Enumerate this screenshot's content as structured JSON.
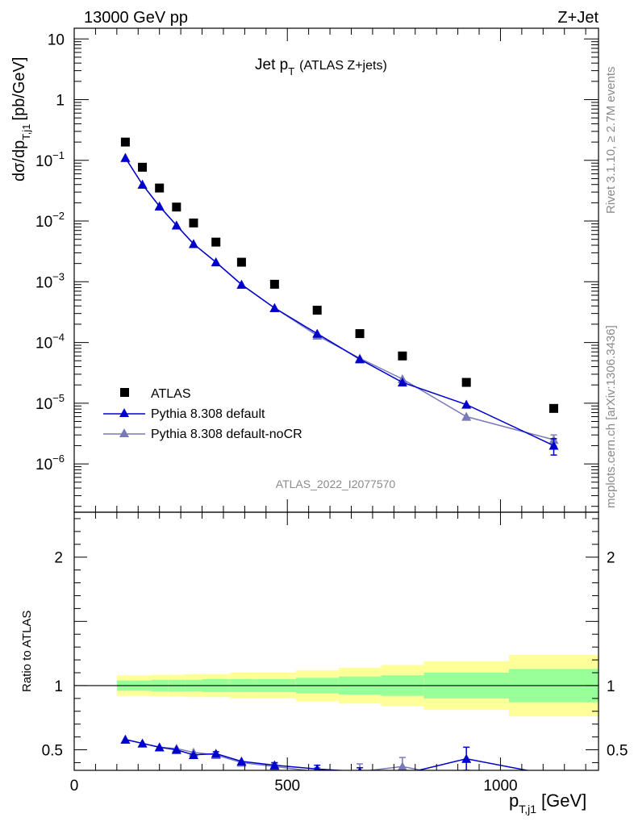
{
  "header": {
    "left": "13000 GeV pp",
    "right": "Z+Jet",
    "title_main": "Jet p",
    "title_sub": "T",
    "title_paren": "(ATLAS Z+jets)"
  },
  "side_labels": {
    "top": "Rivet 3.1.10, ≥ 2.7M events",
    "bottom": "mcplots.cern.ch [arXiv:1306.3436]"
  },
  "analysis_id": "ATLAS_2022_I2077570",
  "axes": {
    "y_main": "dσ/dp",
    "y_main_sub": "T,j1",
    "y_main_unit": "[pb/GeV]",
    "y_ratio": "Ratio to ATLAS",
    "x": "p",
    "x_sub": "T,j1",
    "x_unit": "[GeV]",
    "main_ticks": [
      {
        "label": "10",
        "exp": ""
      },
      {
        "label": "1",
        "exp": ""
      },
      {
        "label": "10",
        "exp": "−1"
      },
      {
        "label": "10",
        "exp": "−2"
      },
      {
        "label": "10",
        "exp": "−3"
      },
      {
        "label": "10",
        "exp": "−4"
      },
      {
        "label": "10",
        "exp": "−5"
      },
      {
        "label": "10",
        "exp": "−6"
      }
    ],
    "ratio_ticks": [
      "2",
      "1",
      "0.5"
    ],
    "x_ticks": [
      "0",
      "500",
      "1000"
    ]
  },
  "legend": [
    {
      "label": "ATLAS"
    },
    {
      "label": "Pythia 8.308 default"
    },
    {
      "label": "Pythia 8.308 default-noCR"
    }
  ],
  "colors": {
    "data": "#000000",
    "default": "#0000cc",
    "nocr": "#7a7ab8",
    "band_inner": "#99ff99",
    "band_outer": "#ffff99"
  },
  "chart_data": [
    {
      "type": "scatter",
      "panel": "main",
      "xlabel": "p_T,j1 [GeV]",
      "ylabel": "dσ/dp_T,j1 [pb/GeV]",
      "y_scale": "log",
      "xlim": [
        0,
        1230
      ],
      "ylim": [
        1.6e-07,
        15
      ],
      "bin_edges": [
        100,
        140,
        180,
        220,
        260,
        300,
        365,
        420,
        520,
        620,
        720,
        820,
        1020,
        1230
      ],
      "x": [
        120,
        160,
        200,
        240,
        280,
        332.5,
        392.5,
        470,
        570,
        670,
        770,
        920,
        1125
      ],
      "series": [
        {
          "name": "ATLAS",
          "values": [
            0.2,
            0.077,
            0.035,
            0.017,
            0.0093,
            0.0045,
            0.0021,
            0.00091,
            0.00034,
            0.00014,
            6e-05,
            2.2e-05,
            8.2e-06
          ]
        },
        {
          "name": "Pythia 8.308 default",
          "values": [
            0.11,
            0.04,
            0.0175,
            0.0085,
            0.0042,
            0.0021,
            0.0009,
            0.00037,
            0.00014,
            5.3e-05,
            2.2e-05,
            9.5e-06,
            2e-06
          ],
          "errors": [
            0,
            0,
            0,
            0,
            0,
            0,
            0,
            0,
            0,
            0,
            0,
            0,
            6e-07
          ]
        },
        {
          "name": "Pythia 8.308 default-noCR",
          "values": [
            0.11,
            0.04,
            0.0175,
            0.0085,
            0.0042,
            0.0021,
            0.0009,
            0.00037,
            0.00013,
            5.5e-05,
            2.5e-05,
            6e-06,
            2.5e-06
          ],
          "errors": [
            0,
            0,
            0,
            0,
            0,
            0,
            0,
            0,
            0,
            0,
            0,
            0,
            5e-07
          ]
        }
      ]
    },
    {
      "type": "line",
      "panel": "ratio",
      "xlabel": "p_T,j1 [GeV]",
      "ylabel": "Ratio to ATLAS",
      "xlim": [
        0,
        1230
      ],
      "ylim": [
        0.34,
        2.35
      ],
      "reference": 1,
      "uncertainty_band": {
        "inner": [
          0.04,
          0.04,
          0.045,
          0.045,
          0.045,
          0.05,
          0.05,
          0.05,
          0.06,
          0.07,
          0.08,
          0.1,
          0.13
        ],
        "outer": [
          0.08,
          0.08,
          0.085,
          0.085,
          0.09,
          0.09,
          0.1,
          0.1,
          0.12,
          0.14,
          0.16,
          0.19,
          0.24
        ]
      },
      "x": [
        120,
        160,
        200,
        240,
        280,
        332.5,
        392.5,
        470,
        570,
        670,
        770,
        920,
        1125
      ],
      "series": [
        {
          "name": "Pythia 8.308 default",
          "values": [
            0.58,
            0.55,
            0.52,
            0.5,
            0.46,
            0.47,
            0.41,
            0.38,
            0.35,
            0.33,
            0.31,
            0.43,
            0.3
          ],
          "errors": [
            0,
            0,
            0,
            0,
            0,
            0.015,
            0,
            0.02,
            0.03,
            0.03,
            0,
            0.09,
            0
          ]
        },
        {
          "name": "Pythia 8.308 default-noCR",
          "values": [
            0.58,
            0.55,
            0.52,
            0.51,
            0.48,
            0.46,
            0.4,
            0.37,
            0.33,
            0.33,
            0.37,
            0.27,
            0.3
          ],
          "errors": [
            0,
            0,
            0,
            0,
            0,
            0,
            0,
            0.02,
            0.03,
            0.06,
            0.07,
            0,
            0
          ]
        }
      ]
    }
  ]
}
